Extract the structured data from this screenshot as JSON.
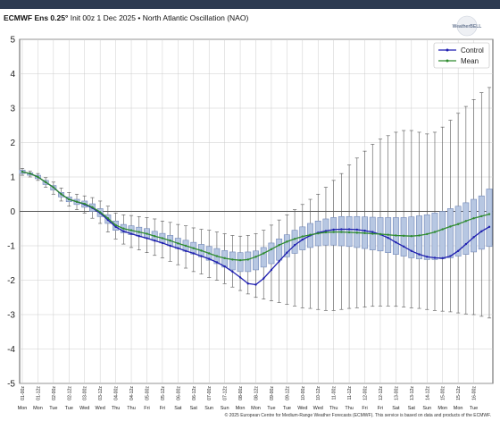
{
  "header": {
    "model": "ECMWF Ens 0.25°",
    "init": "Init 00z 1 Dec 2025",
    "bullet": "•",
    "index_name": "North Atlantic Oscillation (NAO)"
  },
  "logo": {
    "text": "WeatherBELL"
  },
  "footer": {
    "text": "© 2025 European Centre for Medium-Range Weather Forecasts (ECMWF). This service is based on data and products of the ECMWF."
  },
  "colors": {
    "control": "#1f1fb0",
    "mean": "#2e8b2e",
    "box_fill": "#b7c7e2",
    "box_edge": "#6f86b8",
    "whisker": "#555555",
    "grid": "#cccccc",
    "zero_line": "#555555"
  },
  "chart_data": {
    "type": "box",
    "title": "ECMWF Ens 0.25° Init 00z 1 Dec 2025 • North Atlantic Oscillation (NAO)",
    "xlabel": "",
    "ylabel": "",
    "ylim": [
      -5,
      5
    ],
    "yticks": [
      5,
      4,
      3,
      2,
      1,
      0,
      -1,
      -2,
      -3,
      -4,
      -5
    ],
    "grid": true,
    "legend": {
      "placement": "top-right",
      "entries": [
        "Control",
        "Mean"
      ]
    },
    "x": [
      "01-00z",
      "01-12z",
      "02-00z",
      "02-12z",
      "03-00z",
      "03-12z",
      "04-00z",
      "04-12z",
      "05-00z",
      "05-12z",
      "06-00z",
      "06-12z",
      "07-00z",
      "07-12z",
      "08-00z",
      "08-12z",
      "09-00z",
      "09-12z",
      "10-00z",
      "10-12z",
      "11-00z",
      "11-12z",
      "12-00z",
      "12-12z",
      "13-00z",
      "13-12z",
      "14-12z",
      "15-00z",
      "15-12z",
      "16-00z"
    ],
    "day_labels": [
      "Mon",
      "Mon",
      "Tue",
      "Tue",
      "Wed",
      "Wed",
      "Thu",
      "Thu",
      "Fri",
      "Fri",
      "Sat",
      "Sat",
      "Sun",
      "Sun",
      "Mon",
      "Mon",
      "Tue",
      "Tue",
      "Wed",
      "Wed",
      "Thu",
      "Thu",
      "Fri",
      "Fri",
      "Sat",
      "Sat",
      "Sun",
      "Mon",
      "Mon",
      "Tue"
    ],
    "series": [
      {
        "name": "Control",
        "values": [
          1.15,
          1.1,
          1.0,
          0.85,
          0.7,
          0.5,
          0.35,
          0.28,
          0.2,
          0.1,
          -0.05,
          -0.25,
          -0.45,
          -0.58,
          -0.65,
          -0.72,
          -0.78,
          -0.85,
          -0.92,
          -1.0,
          -1.07,
          -1.15,
          -1.22,
          -1.3,
          -1.38,
          -1.48,
          -1.6,
          -1.75,
          -1.92,
          -2.1,
          -2.13,
          -1.95,
          -1.7,
          -1.45,
          -1.2,
          -0.98,
          -0.82,
          -0.7,
          -0.62,
          -0.57,
          -0.53,
          -0.52,
          -0.52,
          -0.53,
          -0.56,
          -0.6,
          -0.67,
          -0.77,
          -0.9,
          -1.02,
          -1.15,
          -1.25,
          -1.32,
          -1.35,
          -1.36,
          -1.3,
          -1.15,
          -0.95,
          -0.75,
          -0.58,
          -0.45
        ]
      },
      {
        "name": "Mean",
        "values": [
          1.15,
          1.1,
          1.0,
          0.85,
          0.7,
          0.5,
          0.35,
          0.28,
          0.22,
          0.12,
          -0.02,
          -0.2,
          -0.4,
          -0.5,
          -0.55,
          -0.6,
          -0.65,
          -0.72,
          -0.78,
          -0.85,
          -0.93,
          -1.0,
          -1.07,
          -1.14,
          -1.22,
          -1.3,
          -1.36,
          -1.4,
          -1.42,
          -1.4,
          -1.32,
          -1.22,
          -1.1,
          -0.98,
          -0.88,
          -0.8,
          -0.73,
          -0.68,
          -0.64,
          -0.61,
          -0.6,
          -0.6,
          -0.61,
          -0.62,
          -0.63,
          -0.65,
          -0.66,
          -0.68,
          -0.7,
          -0.71,
          -0.72,
          -0.7,
          -0.66,
          -0.6,
          -0.52,
          -0.44,
          -0.37,
          -0.28,
          -0.2,
          -0.14,
          -0.08
        ]
      }
    ],
    "boxes": [
      {
        "q1": 1.1,
        "q3": 1.2,
        "min": 1.05,
        "max": 1.25
      },
      {
        "q1": 1.05,
        "q3": 1.12,
        "min": 1.0,
        "max": 1.17
      },
      {
        "q1": 0.95,
        "q3": 1.05,
        "min": 0.9,
        "max": 1.1
      },
      {
        "q1": 0.78,
        "q3": 0.9,
        "min": 0.7,
        "max": 0.98
      },
      {
        "q1": 0.62,
        "q3": 0.75,
        "min": 0.5,
        "max": 0.85
      },
      {
        "q1": 0.42,
        "q3": 0.55,
        "min": 0.3,
        "max": 0.68
      },
      {
        "q1": 0.28,
        "q3": 0.42,
        "min": 0.15,
        "max": 0.55
      },
      {
        "q1": 0.2,
        "q3": 0.35,
        "min": 0.05,
        "max": 0.5
      },
      {
        "q1": 0.12,
        "q3": 0.3,
        "min": -0.05,
        "max": 0.45
      },
      {
        "q1": 0.0,
        "q3": 0.22,
        "min": -0.2,
        "max": 0.4
      },
      {
        "q1": -0.15,
        "q3": 0.08,
        "min": -0.35,
        "max": 0.3
      },
      {
        "q1": -0.35,
        "q3": -0.1,
        "min": -0.6,
        "max": 0.15
      },
      {
        "q1": -0.55,
        "q3": -0.28,
        "min": -0.8,
        "max": -0.05
      },
      {
        "q1": -0.62,
        "q3": -0.38,
        "min": -0.95,
        "max": -0.1
      },
      {
        "q1": -0.68,
        "q3": -0.42,
        "min": -1.05,
        "max": -0.12
      },
      {
        "q1": -0.72,
        "q3": -0.46,
        "min": -1.12,
        "max": -0.15
      },
      {
        "q1": -0.78,
        "q3": -0.5,
        "min": -1.2,
        "max": -0.18
      },
      {
        "q1": -0.85,
        "q3": -0.58,
        "min": -1.28,
        "max": -0.22
      },
      {
        "q1": -0.92,
        "q3": -0.64,
        "min": -1.35,
        "max": -0.28
      },
      {
        "q1": -1.0,
        "q3": -0.7,
        "min": -1.45,
        "max": -0.32
      },
      {
        "q1": -1.08,
        "q3": -0.78,
        "min": -1.55,
        "max": -0.38
      },
      {
        "q1": -1.16,
        "q3": -0.84,
        "min": -1.65,
        "max": -0.42
      },
      {
        "q1": -1.24,
        "q3": -0.9,
        "min": -1.75,
        "max": -0.48
      },
      {
        "q1": -1.32,
        "q3": -0.96,
        "min": -1.82,
        "max": -0.52
      },
      {
        "q1": -1.42,
        "q3": -1.02,
        "min": -1.92,
        "max": -0.55
      },
      {
        "q1": -1.52,
        "q3": -1.08,
        "min": -2.0,
        "max": -0.6
      },
      {
        "q1": -1.62,
        "q3": -1.14,
        "min": -2.1,
        "max": -0.65
      },
      {
        "q1": -1.7,
        "q3": -1.18,
        "min": -2.2,
        "max": -0.7
      },
      {
        "q1": -1.75,
        "q3": -1.2,
        "min": -2.3,
        "max": -0.72
      },
      {
        "q1": -1.75,
        "q3": -1.18,
        "min": -2.4,
        "max": -0.7
      },
      {
        "q1": -1.7,
        "q3": -1.15,
        "min": -2.5,
        "max": -0.65
      },
      {
        "q1": -1.62,
        "q3": -1.05,
        "min": -2.55,
        "max": -0.55
      },
      {
        "q1": -1.52,
        "q3": -0.92,
        "min": -2.6,
        "max": -0.4
      },
      {
        "q1": -1.42,
        "q3": -0.8,
        "min": -2.65,
        "max": -0.25
      },
      {
        "q1": -1.32,
        "q3": -0.68,
        "min": -2.7,
        "max": -0.1
      },
      {
        "q1": -1.22,
        "q3": -0.55,
        "min": -2.75,
        "max": 0.05
      },
      {
        "q1": -1.12,
        "q3": -0.45,
        "min": -2.8,
        "max": 0.2
      },
      {
        "q1": -1.05,
        "q3": -0.35,
        "min": -2.82,
        "max": 0.35
      },
      {
        "q1": -1.0,
        "q3": -0.28,
        "min": -2.85,
        "max": 0.5
      },
      {
        "q1": -0.98,
        "q3": -0.22,
        "min": -2.88,
        "max": 0.7
      },
      {
        "q1": -0.98,
        "q3": -0.18,
        "min": -2.88,
        "max": 0.9
      },
      {
        "q1": -1.0,
        "q3": -0.15,
        "min": -2.85,
        "max": 1.1
      },
      {
        "q1": -1.02,
        "q3": -0.15,
        "min": -2.82,
        "max": 1.35
      },
      {
        "q1": -1.05,
        "q3": -0.15,
        "min": -2.8,
        "max": 1.55
      },
      {
        "q1": -1.08,
        "q3": -0.16,
        "min": -2.78,
        "max": 1.75
      },
      {
        "q1": -1.12,
        "q3": -0.17,
        "min": -2.76,
        "max": 1.95
      },
      {
        "q1": -1.15,
        "q3": -0.18,
        "min": -2.75,
        "max": 2.1
      },
      {
        "q1": -1.2,
        "q3": -0.18,
        "min": -2.75,
        "max": 2.2
      },
      {
        "q1": -1.25,
        "q3": -0.18,
        "min": -2.76,
        "max": 2.3
      },
      {
        "q1": -1.3,
        "q3": -0.18,
        "min": -2.78,
        "max": 2.35
      },
      {
        "q1": -1.35,
        "q3": -0.16,
        "min": -2.8,
        "max": 2.35
      },
      {
        "q1": -1.38,
        "q3": -0.13,
        "min": -2.82,
        "max": 2.3
      },
      {
        "q1": -1.4,
        "q3": -0.1,
        "min": -2.85,
        "max": 2.25
      },
      {
        "q1": -1.4,
        "q3": -0.05,
        "min": -2.88,
        "max": 2.3
      },
      {
        "q1": -1.38,
        "q3": 0.0,
        "min": -2.9,
        "max": 2.45
      },
      {
        "q1": -1.35,
        "q3": 0.08,
        "min": -2.92,
        "max": 2.65
      },
      {
        "q1": -1.3,
        "q3": 0.15,
        "min": -2.95,
        "max": 2.85
      },
      {
        "q1": -1.25,
        "q3": 0.25,
        "min": -2.98,
        "max": 3.05
      },
      {
        "q1": -1.18,
        "q3": 0.35,
        "min": -3.0,
        "max": 3.25
      },
      {
        "q1": -1.1,
        "q3": 0.45,
        "min": -3.05,
        "max": 3.45
      },
      {
        "q1": -1.02,
        "q3": 0.65,
        "min": -3.1,
        "max": 3.6
      }
    ]
  }
}
